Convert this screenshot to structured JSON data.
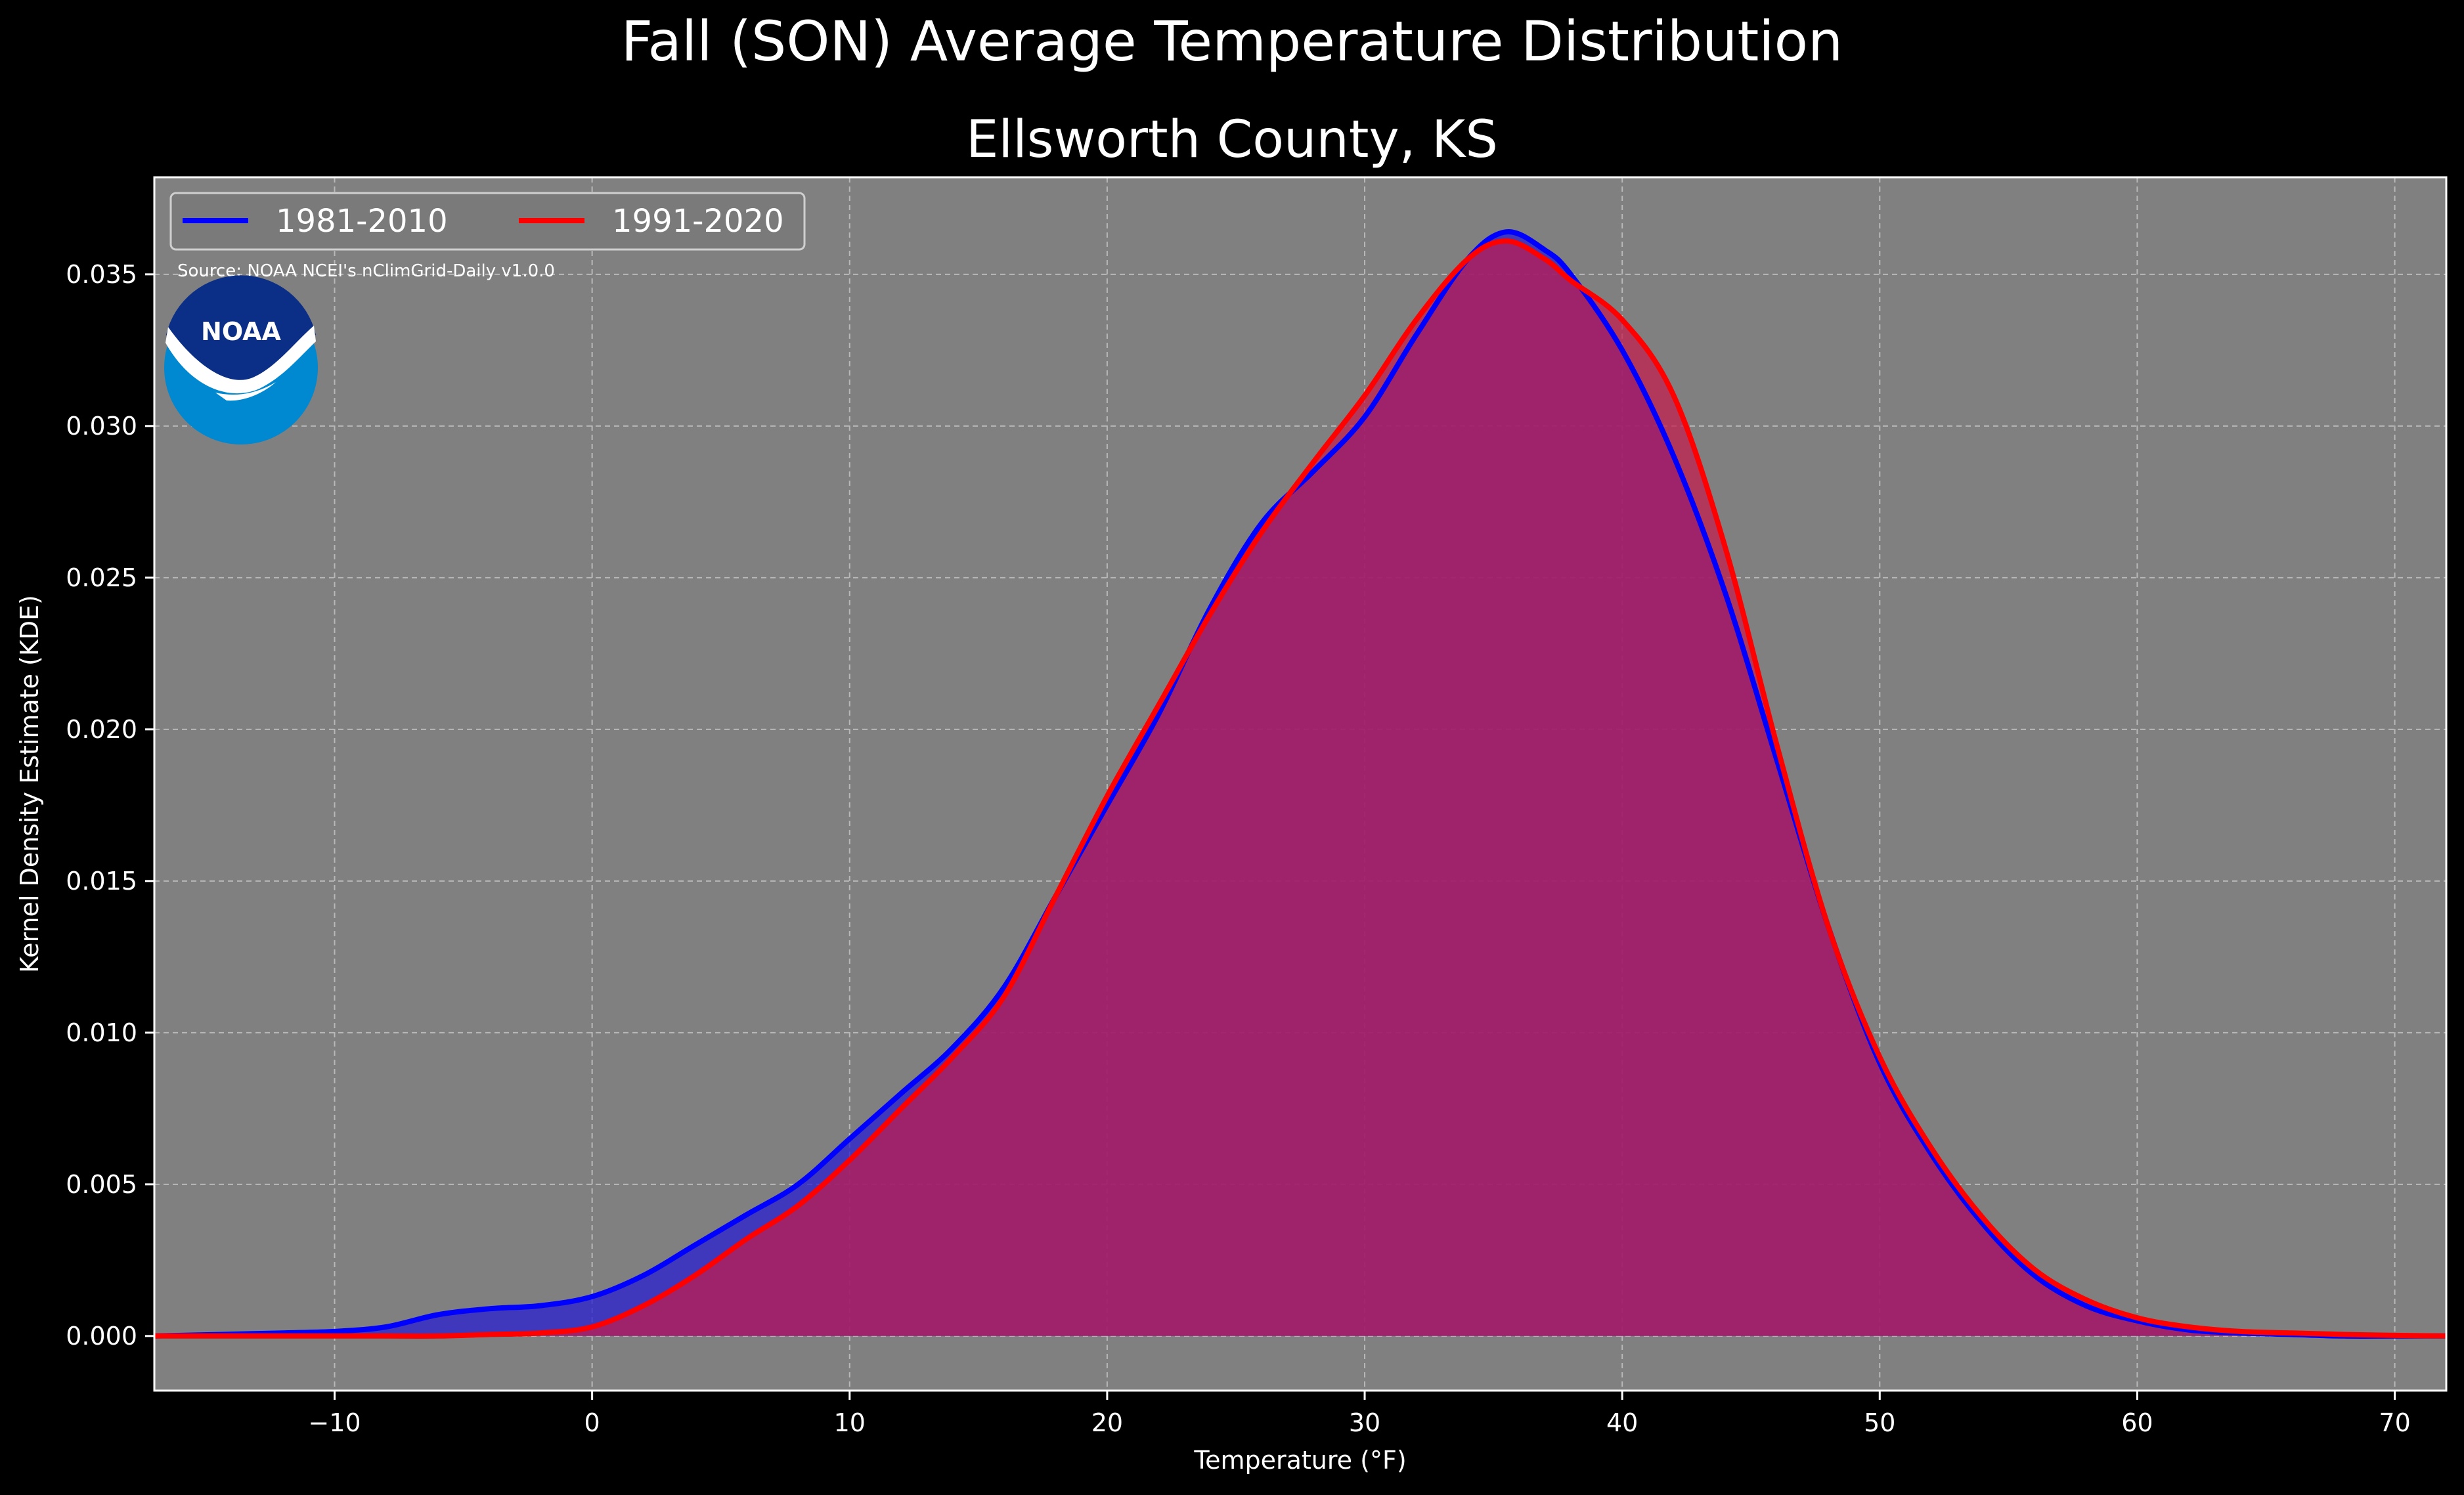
{
  "chart_data": {
    "type": "area",
    "suptitle": "Fall (SON) Average Temperature Distribution",
    "title": "Ellsworth County, KS",
    "xlabel": "Temperature (°F)",
    "ylabel": "Kernel Density Estimate (KDE)",
    "xlim": [
      -17,
      72
    ],
    "ylim": [
      -0.0018,
      0.0382
    ],
    "xticks": [
      -10,
      0,
      10,
      20,
      30,
      40,
      50,
      60,
      70
    ],
    "xtick_labels": [
      "−10",
      "0",
      "10",
      "20",
      "30",
      "40",
      "50",
      "60",
      "70"
    ],
    "yticks": [
      0.0,
      0.005,
      0.01,
      0.015,
      0.02,
      0.025,
      0.03,
      0.035
    ],
    "ytick_labels": [
      "0.000",
      "0.005",
      "0.010",
      "0.015",
      "0.020",
      "0.025",
      "0.030",
      "0.035"
    ],
    "grid": true,
    "legend_position": "top-left",
    "source": "Source: NOAA NCEI's nClimGrid-Daily v1.0.0",
    "logo_text": "NOAA",
    "background_color": "#808080",
    "series": [
      {
        "name": "1981-2010",
        "color": "#0000ff",
        "fill": "#2a1fd0",
        "x": [
          -17,
          -12,
          -10,
          -8,
          -6,
          -4,
          -2,
          0,
          2,
          4,
          6,
          8,
          10,
          12,
          14,
          16,
          18,
          20,
          22,
          24,
          26,
          28,
          30,
          32,
          34,
          35.5,
          37,
          38,
          40,
          42,
          44,
          46,
          48,
          50,
          52,
          54,
          56,
          58,
          60,
          62,
          64,
          66,
          68,
          70,
          72
        ],
        "y": [
          0.0,
          0.0001,
          0.00015,
          0.0003,
          0.0007,
          0.0009,
          0.001,
          0.0013,
          0.002,
          0.003,
          0.004,
          0.005,
          0.0065,
          0.008,
          0.0095,
          0.0115,
          0.0145,
          0.0175,
          0.0205,
          0.024,
          0.0268,
          0.0285,
          0.0303,
          0.033,
          0.0355,
          0.0364,
          0.0358,
          0.035,
          0.0325,
          0.029,
          0.0245,
          0.019,
          0.0135,
          0.009,
          0.006,
          0.0037,
          0.002,
          0.001,
          0.0005,
          0.0002,
          0.0001,
          5e-05,
          0.0,
          0.0,
          0.0
        ]
      },
      {
        "name": "1991-2020",
        "color": "#ff0000",
        "fill": "#c41c4c",
        "x": [
          -17,
          -12,
          -10,
          -8,
          -6,
          -4,
          -2,
          0,
          2,
          4,
          6,
          8,
          10,
          12,
          14,
          16,
          18,
          20,
          22,
          24,
          26,
          28,
          30,
          32,
          34,
          35.5,
          37,
          38,
          40,
          42,
          44,
          46,
          48,
          50,
          52,
          54,
          56,
          58,
          60,
          62,
          64,
          66,
          68,
          70,
          72
        ],
        "y": [
          0.0,
          0.0,
          0.0,
          0.0,
          0.0,
          5e-05,
          0.0001,
          0.0003,
          0.001,
          0.002,
          0.0032,
          0.0043,
          0.0058,
          0.0075,
          0.0092,
          0.0112,
          0.0145,
          0.0178,
          0.0208,
          0.0238,
          0.0265,
          0.0288,
          0.031,
          0.0335,
          0.0355,
          0.0361,
          0.0355,
          0.0348,
          0.0335,
          0.031,
          0.026,
          0.0195,
          0.0135,
          0.0092,
          0.0062,
          0.0039,
          0.0022,
          0.0012,
          0.0006,
          0.0003,
          0.00015,
          0.0001,
          5e-05,
          2e-05,
          0.0
        ]
      }
    ]
  }
}
